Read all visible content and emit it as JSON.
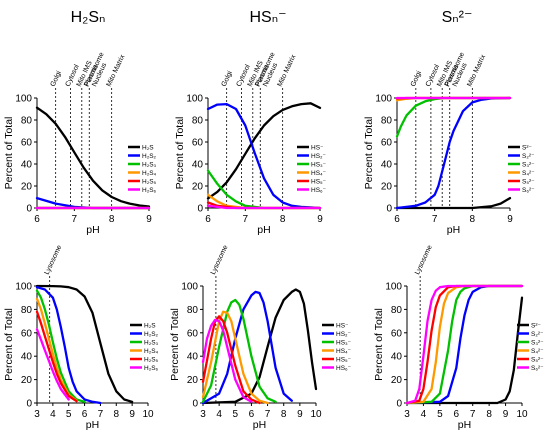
{
  "columns": [
    {
      "title": "H₂Sₙ"
    },
    {
      "title": "HSₙ⁻"
    },
    {
      "title": "Sₙ²⁻"
    }
  ],
  "chart_data": [
    {
      "id": "top-h2sn",
      "type": "line",
      "xlabel": "pH",
      "ylabel": "Percent of Total",
      "xlim": [
        6,
        9
      ],
      "ylim": [
        0,
        100
      ],
      "xticks": [
        6,
        7,
        8,
        9
      ],
      "yticks": [
        0,
        20,
        40,
        60,
        80,
        100
      ],
      "annotations": [
        {
          "label": "Golgi",
          "x": 6.5
        },
        {
          "label": "Cytosol",
          "x": 6.9
        },
        {
          "label": "Mito IMS",
          "x": 7.2
        },
        {
          "label": "Peroxisome",
          "x": 7.2
        },
        {
          "label": "Plasma",
          "x": 7.4
        },
        {
          "label": "Nucleus",
          "x": 7.4
        },
        {
          "label": "Mito Matrix",
          "x": 8.0
        }
      ],
      "series": [
        {
          "name": "H₂S",
          "color": "#000000",
          "x": [
            6.0,
            6.25,
            6.5,
            6.75,
            7.0,
            7.25,
            7.5,
            7.75,
            8.0,
            8.25,
            8.5,
            8.75,
            9.0
          ],
          "y": [
            91.2,
            85.3,
            76.5,
            64.6,
            50.6,
            36.6,
            24.8,
            16.0,
            10.0,
            6.2,
            3.8,
            2.3,
            1.4
          ]
        },
        {
          "name": "H₂S₂",
          "color": "#0000ff",
          "x": [
            6.0,
            6.5,
            7.0,
            7.5,
            8.0,
            8.5,
            9.0
          ],
          "y": [
            9,
            4,
            1,
            0,
            0,
            0,
            0
          ]
        },
        {
          "name": "H₂S₃",
          "color": "#00c000",
          "x": [
            6.0,
            9.0
          ],
          "y": [
            0,
            0
          ]
        },
        {
          "name": "H₂S₄",
          "color": "#ff9900",
          "x": [
            6.0,
            9.0
          ],
          "y": [
            0,
            0
          ]
        },
        {
          "name": "H₂S₅",
          "color": "#ff0000",
          "x": [
            6.0,
            9.0
          ],
          "y": [
            0,
            0
          ]
        },
        {
          "name": "H₂S₆",
          "color": "#ff00ff",
          "x": [
            6.0,
            9.0
          ],
          "y": [
            0,
            0
          ]
        }
      ]
    },
    {
      "id": "top-hsn",
      "type": "line",
      "xlabel": "pH",
      "ylabel": "Percent of Total",
      "xlim": [
        6,
        9
      ],
      "ylim": [
        0,
        100
      ],
      "xticks": [
        6,
        7,
        8,
        9
      ],
      "yticks": [
        0,
        20,
        40,
        60,
        80,
        100
      ],
      "annotations": [
        {
          "label": "Golgi",
          "x": 6.5
        },
        {
          "label": "Cytosol",
          "x": 6.9
        },
        {
          "label": "Mito IMS",
          "x": 7.2
        },
        {
          "label": "Peroxisome",
          "x": 7.2
        },
        {
          "label": "Plasma",
          "x": 7.4
        },
        {
          "label": "Nucleus",
          "x": 7.4
        },
        {
          "label": "Mito Matrix",
          "x": 8.0
        }
      ],
      "series": [
        {
          "name": "HS⁻",
          "color": "#000000",
          "x": [
            6.0,
            6.25,
            6.5,
            6.75,
            7.0,
            7.25,
            7.5,
            7.75,
            8.0,
            8.25,
            8.5,
            8.75,
            9.0
          ],
          "y": [
            8.7,
            14.6,
            23.4,
            35.3,
            49.3,
            63.3,
            75.0,
            83.5,
            89.2,
            92.5,
            94.5,
            95.2,
            91.0
          ]
        },
        {
          "name": "HS₂⁻",
          "color": "#0000ff",
          "x": [
            6.0,
            6.25,
            6.5,
            6.75,
            7.0,
            7.25,
            7.5,
            7.75,
            8.0,
            8.25,
            8.5,
            8.75,
            9.0
          ],
          "y": [
            90.0,
            94.0,
            94.5,
            90.0,
            75.0,
            50.0,
            27.0,
            12.0,
            5.0,
            2.0,
            1.0,
            0.5,
            0.0
          ]
        },
        {
          "name": "HS₃⁻",
          "color": "#00c000",
          "x": [
            6.0,
            6.25,
            6.5,
            6.75,
            7.0,
            7.25,
            7.5,
            8.0,
            9.0
          ],
          "y": [
            34.0,
            22.0,
            12.0,
            6.0,
            2.0,
            1.0,
            0.0,
            0.0,
            0.0
          ]
        },
        {
          "name": "HS₄⁻",
          "color": "#ff9900",
          "x": [
            6.0,
            6.25,
            6.5,
            6.75,
            7.0,
            9.0
          ],
          "y": [
            12.0,
            6.0,
            2.0,
            1.0,
            0.0,
            0.0
          ]
        },
        {
          "name": "HS₅⁻",
          "color": "#ff0000",
          "x": [
            6.0,
            6.25,
            6.5,
            6.75,
            9.0
          ],
          "y": [
            5.0,
            2.0,
            1.0,
            0.0,
            0.0
          ]
        },
        {
          "name": "HS₆⁻",
          "color": "#ff00ff",
          "x": [
            6.0,
            6.25,
            6.5,
            9.0
          ],
          "y": [
            2.0,
            1.0,
            0.0,
            0.0
          ]
        }
      ]
    },
    {
      "id": "top-sn",
      "type": "line",
      "xlabel": "pH",
      "ylabel": "Percent of Total",
      "xlim": [
        6,
        9
      ],
      "ylim": [
        0,
        100
      ],
      "xticks": [
        6,
        7,
        8,
        9
      ],
      "yticks": [
        0,
        20,
        40,
        60,
        80,
        100
      ],
      "annotations": [
        {
          "label": "Golgi",
          "x": 6.5
        },
        {
          "label": "Cytosol",
          "x": 6.9
        },
        {
          "label": "Mito IMS",
          "x": 7.2
        },
        {
          "label": "Peroxisome",
          "x": 7.2
        },
        {
          "label": "Plasma",
          "x": 7.4
        },
        {
          "label": "Nucleus",
          "x": 7.4
        },
        {
          "label": "Mito Matrix",
          "x": 8.0
        }
      ],
      "series": [
        {
          "name": "S²⁻",
          "color": "#000000",
          "x": [
            6.0,
            8.0,
            8.5,
            8.75,
            9.0
          ],
          "y": [
            0,
            0,
            1.5,
            4,
            9
          ]
        },
        {
          "name": "S₂²⁻",
          "color": "#0000ff",
          "x": [
            6.0,
            6.5,
            6.75,
            7.0,
            7.1,
            7.25,
            7.4,
            7.5,
            7.75,
            8.0,
            8.25,
            8.5,
            9.0
          ],
          "y": [
            0,
            2,
            5,
            12,
            20,
            40,
            60,
            70,
            88,
            96,
            98.5,
            99.5,
            100
          ]
        },
        {
          "name": "S₃²⁻",
          "color": "#00c000",
          "x": [
            6.0,
            6.1,
            6.25,
            6.5,
            6.75,
            7.0,
            7.25,
            7.5,
            8.0,
            9.0
          ],
          "y": [
            65,
            74,
            84,
            93,
            97,
            99,
            100,
            100,
            100,
            100
          ]
        },
        {
          "name": "S₄²⁻",
          "color": "#ff9900",
          "x": [
            6.0,
            6.25,
            6.5,
            9.0
          ],
          "y": [
            98,
            99.3,
            100,
            100
          ]
        },
        {
          "name": "S₅²⁻",
          "color": "#ff0000",
          "x": [
            6.0,
            6.25,
            9.0
          ],
          "y": [
            99.5,
            100,
            100
          ]
        },
        {
          "name": "S₆²⁻",
          "color": "#ff00ff",
          "x": [
            6.0,
            9.0
          ],
          "y": [
            100,
            100
          ]
        }
      ]
    },
    {
      "id": "bot-h2sn",
      "type": "line",
      "xlabel": "pH",
      "ylabel": "Percent of Total",
      "xlim": [
        3,
        10
      ],
      "ylim": [
        0,
        100
      ],
      "xticks": [
        3,
        4,
        5,
        6,
        7,
        8,
        9,
        10
      ],
      "yticks": [
        0,
        20,
        40,
        60,
        80,
        100
      ],
      "annotations": [
        {
          "label": "Lysosome",
          "x": 3.8
        }
      ],
      "series": [
        {
          "name": "H₂S",
          "color": "#000000",
          "x": [
            3,
            4,
            4.5,
            5,
            5.5,
            6,
            6.5,
            7,
            7.5,
            8,
            8.5,
            9
          ],
          "y": [
            100,
            99.9,
            99.7,
            99,
            97,
            91,
            77,
            51,
            25,
            10,
            3,
            1
          ]
        },
        {
          "name": "H₂S₂",
          "color": "#0000ff",
          "x": [
            3,
            3.5,
            4,
            4.25,
            4.5,
            4.75,
            5,
            5.25,
            5.5,
            6,
            6.5,
            7
          ],
          "y": [
            99,
            97,
            90,
            80,
            65,
            48,
            30,
            18,
            10,
            3,
            1,
            0
          ]
        },
        {
          "name": "H₂S₃",
          "color": "#00c000",
          "x": [
            3,
            3.25,
            3.5,
            3.75,
            4,
            4.25,
            4.5,
            5,
            5.5,
            6
          ],
          "y": [
            96,
            90,
            80,
            67,
            52,
            38,
            26,
            10,
            3,
            1
          ]
        },
        {
          "name": "H₂S₄",
          "color": "#ff9900",
          "x": [
            3,
            3.25,
            3.5,
            3.75,
            4,
            4.25,
            4.5,
            5,
            5.5
          ],
          "y": [
            89,
            80,
            68,
            55,
            42,
            30,
            20,
            7,
            2
          ]
        },
        {
          "name": "H₂S₅",
          "color": "#ff0000",
          "x": [
            3,
            3.25,
            3.5,
            3.75,
            4,
            4.25,
            4.5,
            5,
            5.5
          ],
          "y": [
            78,
            68,
            57,
            46,
            35,
            25,
            17,
            6,
            1.5
          ]
        },
        {
          "name": "H₂S₆",
          "color": "#ff00ff",
          "x": [
            3,
            3.25,
            3.5,
            3.75,
            4,
            4.25,
            4.5,
            5
          ],
          "y": [
            63,
            54,
            45,
            36,
            27,
            19,
            12,
            3
          ]
        }
      ]
    },
    {
      "id": "bot-hsn",
      "type": "line",
      "xlabel": "pH",
      "ylabel": "Percent of Total",
      "xlim": [
        3,
        10
      ],
      "ylim": [
        0,
        100
      ],
      "xticks": [
        3,
        4,
        5,
        6,
        7,
        8,
        9,
        10
      ],
      "yticks": [
        0,
        20,
        40,
        60,
        80,
        100
      ],
      "annotations": [
        {
          "label": "Lysosome",
          "x": 3.8
        }
      ],
      "series": [
        {
          "name": "HS⁻",
          "color": "#000000",
          "x": [
            3,
            5,
            6,
            6.5,
            7,
            7.5,
            8,
            8.5,
            8.75,
            9,
            9.25,
            9.5,
            9.75,
            10
          ],
          "y": [
            0,
            1,
            8,
            22,
            48,
            73,
            88,
            95,
            97,
            95,
            85,
            62,
            35,
            12
          ]
        },
        {
          "name": "HS₂⁻",
          "color": "#0000ff",
          "x": [
            3,
            4,
            4.5,
            5,
            5.5,
            6,
            6.25,
            6.5,
            6.75,
            7,
            7.5,
            8,
            8.5
          ],
          "y": [
            0,
            8,
            25,
            55,
            80,
            92,
            95,
            94,
            86,
            70,
            30,
            8,
            2
          ]
        },
        {
          "name": "HS₃⁻",
          "color": "#00c000",
          "x": [
            3,
            3.5,
            4,
            4.5,
            4.75,
            5,
            5.25,
            5.5,
            6,
            6.5,
            7,
            7.5
          ],
          "y": [
            1,
            15,
            48,
            78,
            86,
            88,
            84,
            72,
            40,
            14,
            4,
            1
          ]
        },
        {
          "name": "HS₄⁻",
          "color": "#ff9900",
          "x": [
            3,
            3.5,
            4,
            4.25,
            4.5,
            4.75,
            5,
            5.5,
            6,
            6.5,
            7
          ],
          "y": [
            5,
            35,
            70,
            78,
            77,
            70,
            55,
            25,
            8,
            2,
            0
          ]
        },
        {
          "name": "HS₅⁻",
          "color": "#ff0000",
          "x": [
            3,
            3.5,
            3.75,
            4,
            4.25,
            4.5,
            5,
            5.5,
            6,
            6.5
          ],
          "y": [
            18,
            55,
            70,
            74,
            70,
            60,
            32,
            10,
            3,
            0
          ]
        },
        {
          "name": "HS₆⁻",
          "color": "#ff00ff",
          "x": [
            3,
            3.25,
            3.5,
            3.75,
            4,
            4.25,
            4.5,
            5,
            5.5,
            6
          ],
          "y": [
            35,
            55,
            66,
            71,
            70,
            62,
            48,
            20,
            5,
            1
          ]
        }
      ]
    },
    {
      "id": "bot-sn",
      "type": "line",
      "xlabel": "pH",
      "ylabel": "Percent of Total",
      "xlim": [
        3,
        10
      ],
      "ylim": [
        0,
        100
      ],
      "xticks": [
        3,
        4,
        5,
        6,
        7,
        8,
        9,
        10
      ],
      "yticks": [
        0,
        20,
        40,
        60,
        80,
        100
      ],
      "annotations": [
        {
          "label": "Lysosome",
          "x": 3.8
        }
      ],
      "series": [
        {
          "name": "S²⁻",
          "color": "#000000",
          "x": [
            3,
            8.5,
            9,
            9.25,
            9.5,
            9.75,
            10
          ],
          "y": [
            0,
            0,
            3,
            10,
            28,
            60,
            90
          ]
        },
        {
          "name": "S₂²⁻",
          "color": "#0000ff",
          "x": [
            3,
            5,
            5.5,
            6,
            6.25,
            6.5,
            6.75,
            7,
            7.5,
            8,
            10
          ],
          "y": [
            0,
            1,
            6,
            30,
            55,
            75,
            88,
            95,
            99,
            100,
            100
          ]
        },
        {
          "name": "S₃²⁻",
          "color": "#00c000",
          "x": [
            3,
            4.5,
            5,
            5.5,
            5.75,
            6,
            6.25,
            6.5,
            7,
            10
          ],
          "y": [
            0,
            1,
            8,
            45,
            70,
            88,
            95,
            98,
            100,
            100
          ]
        },
        {
          "name": "S₄²⁻",
          "color": "#ff9900",
          "x": [
            3,
            4,
            4.5,
            4.75,
            5,
            5.25,
            5.5,
            6,
            6.5,
            10
          ],
          "y": [
            0,
            1,
            12,
            35,
            65,
            85,
            94,
            99,
            100,
            100
          ]
        },
        {
          "name": "S₅²⁻",
          "color": "#ff0000",
          "x": [
            3,
            3.75,
            4,
            4.25,
            4.5,
            4.75,
            5,
            5.5,
            6,
            10
          ],
          "y": [
            0,
            2,
            12,
            35,
            62,
            82,
            92,
            99,
            100,
            100
          ]
        },
        {
          "name": "S₆²⁻",
          "color": "#ff00ff",
          "x": [
            3,
            3.5,
            3.75,
            4,
            4.25,
            4.5,
            4.75,
            5,
            5.5,
            10
          ],
          "y": [
            0,
            2,
            12,
            40,
            70,
            88,
            96,
            99,
            100,
            100
          ]
        }
      ]
    }
  ]
}
